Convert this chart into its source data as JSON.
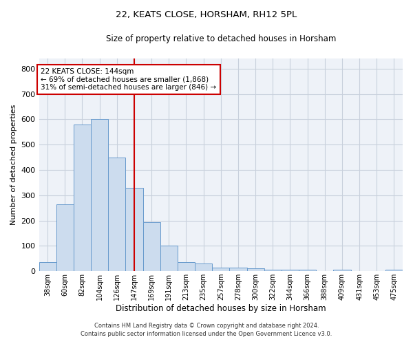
{
  "title1": "22, KEATS CLOSE, HORSHAM, RH12 5PL",
  "title2": "Size of property relative to detached houses in Horsham",
  "xlabel": "Distribution of detached houses by size in Horsham",
  "ylabel": "Number of detached properties",
  "categories": [
    "38sqm",
    "60sqm",
    "82sqm",
    "104sqm",
    "126sqm",
    "147sqm",
    "169sqm",
    "191sqm",
    "213sqm",
    "235sqm",
    "257sqm",
    "278sqm",
    "300sqm",
    "322sqm",
    "344sqm",
    "366sqm",
    "388sqm",
    "409sqm",
    "431sqm",
    "453sqm",
    "475sqm"
  ],
  "values": [
    37,
    263,
    580,
    600,
    450,
    328,
    193,
    100,
    35,
    30,
    15,
    15,
    10,
    5,
    5,
    5,
    0,
    5,
    0,
    0,
    7
  ],
  "bar_color": "#ccdcee",
  "bar_edge_color": "#6699cc",
  "annotation_line1": "22 KEATS CLOSE: 144sqm",
  "annotation_line2": "← 69% of detached houses are smaller (1,868)",
  "annotation_line3": "31% of semi-detached houses are larger (846) →",
  "vline_color": "#cc0000",
  "annotation_box_color": "#ffffff",
  "annotation_box_edge": "#cc0000",
  "ylim": [
    0,
    840
  ],
  "yticks": [
    0,
    100,
    200,
    300,
    400,
    500,
    600,
    700,
    800
  ],
  "grid_color": "#c8d0dc",
  "bg_color": "#eef2f8",
  "footnote1": "Contains HM Land Registry data © Crown copyright and database right 2024.",
  "footnote2": "Contains public sector information licensed under the Open Government Licence v3.0."
}
